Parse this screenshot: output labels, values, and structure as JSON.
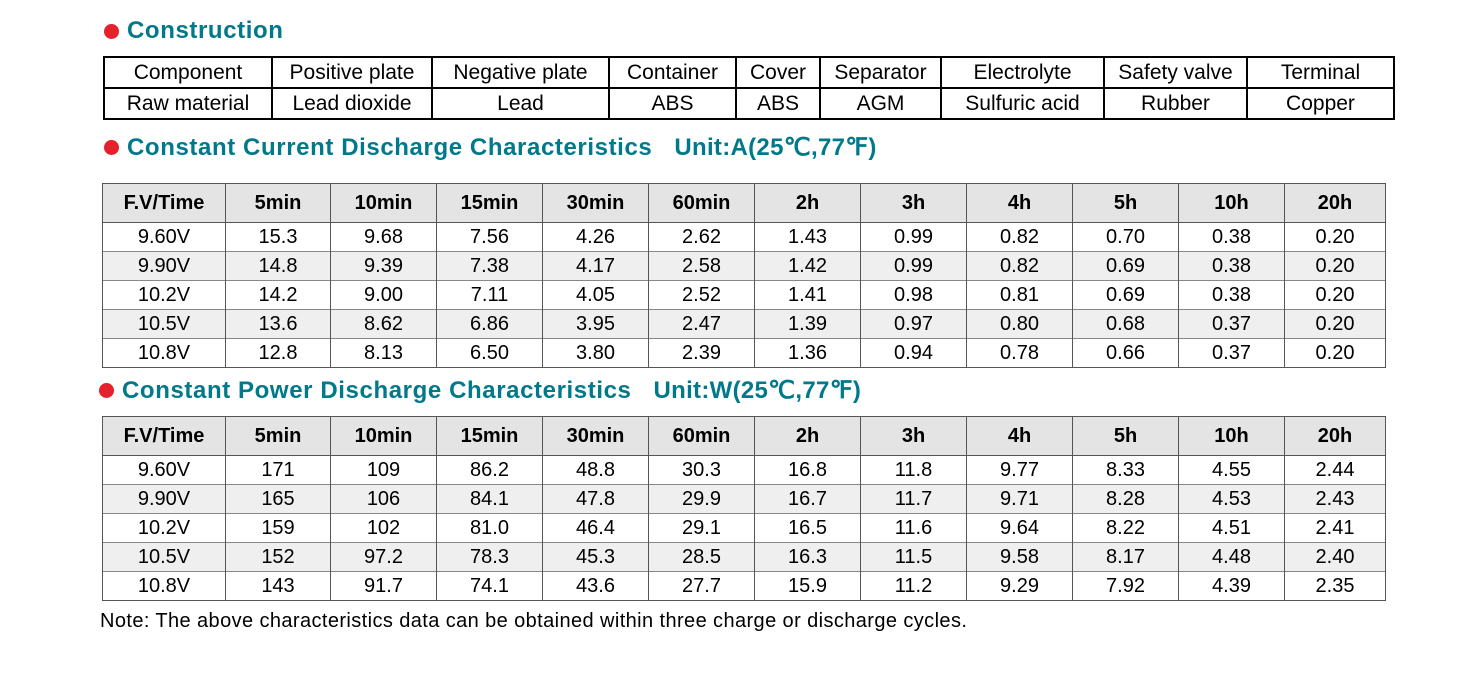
{
  "construction": {
    "title": "Construction",
    "rows": [
      [
        "Component",
        "Positive plate",
        "Negative plate",
        "Container",
        "Cover",
        "Separator",
        "Electrolyte",
        "Safety valve",
        "Terminal"
      ],
      [
        "Raw material",
        "Lead dioxide",
        "Lead",
        "ABS",
        "ABS",
        "AGM",
        "Sulfuric acid",
        "Rubber",
        "Copper"
      ]
    ]
  },
  "current": {
    "title": "Constant Current Discharge Characteristics",
    "unit": "Unit:A(25℃,77℉)",
    "headers": [
      "F.V/Time",
      "5min",
      "10min",
      "15min",
      "30min",
      "60min",
      "2h",
      "3h",
      "4h",
      "5h",
      "10h",
      "20h"
    ],
    "rows": [
      [
        "9.60V",
        "15.3",
        "9.68",
        "7.56",
        "4.26",
        "2.62",
        "1.43",
        "0.99",
        "0.82",
        "0.70",
        "0.38",
        "0.20"
      ],
      [
        "9.90V",
        "14.8",
        "9.39",
        "7.38",
        "4.17",
        "2.58",
        "1.42",
        "0.99",
        "0.82",
        "0.69",
        "0.38",
        "0.20"
      ],
      [
        "10.2V",
        "14.2",
        "9.00",
        "7.11",
        "4.05",
        "2.52",
        "1.41",
        "0.98",
        "0.81",
        "0.69",
        "0.38",
        "0.20"
      ],
      [
        "10.5V",
        "13.6",
        "8.62",
        "6.86",
        "3.95",
        "2.47",
        "1.39",
        "0.97",
        "0.80",
        "0.68",
        "0.37",
        "0.20"
      ],
      [
        "10.8V",
        "12.8",
        "8.13",
        "6.50",
        "3.80",
        "2.39",
        "1.36",
        "0.94",
        "0.78",
        "0.66",
        "0.37",
        "0.20"
      ]
    ]
  },
  "power": {
    "title": "Constant Power Discharge Characteristics",
    "unit": "Unit:W(25℃,77℉)",
    "headers": [
      "F.V/Time",
      "5min",
      "10min",
      "15min",
      "30min",
      "60min",
      "2h",
      "3h",
      "4h",
      "5h",
      "10h",
      "20h"
    ],
    "rows": [
      [
        "9.60V",
        "171",
        "109",
        "86.2",
        "48.8",
        "30.3",
        "16.8",
        "11.8",
        "9.77",
        "8.33",
        "4.55",
        "2.44"
      ],
      [
        "9.90V",
        "165",
        "106",
        "84.1",
        "47.8",
        "29.9",
        "16.7",
        "11.7",
        "9.71",
        "8.28",
        "4.53",
        "2.43"
      ],
      [
        "10.2V",
        "159",
        "102",
        "81.0",
        "46.4",
        "29.1",
        "16.5",
        "11.6",
        "9.64",
        "8.22",
        "4.51",
        "2.41"
      ],
      [
        "10.5V",
        "152",
        "97.2",
        "78.3",
        "45.3",
        "28.5",
        "16.3",
        "11.5",
        "9.58",
        "8.17",
        "4.48",
        "2.40"
      ],
      [
        "10.8V",
        "143",
        "91.7",
        "74.1",
        "43.6",
        "27.7",
        "15.9",
        "11.2",
        "9.29",
        "7.92",
        "4.39",
        "2.35"
      ]
    ]
  },
  "note": "Note: The above characteristics data can be obtained within three charge or discharge cycles.",
  "colors": {
    "heading": "#007a8a",
    "bullet": "#e3222b",
    "header_bg": "#e4e4e4",
    "stripe_bg": "#efefef"
  }
}
